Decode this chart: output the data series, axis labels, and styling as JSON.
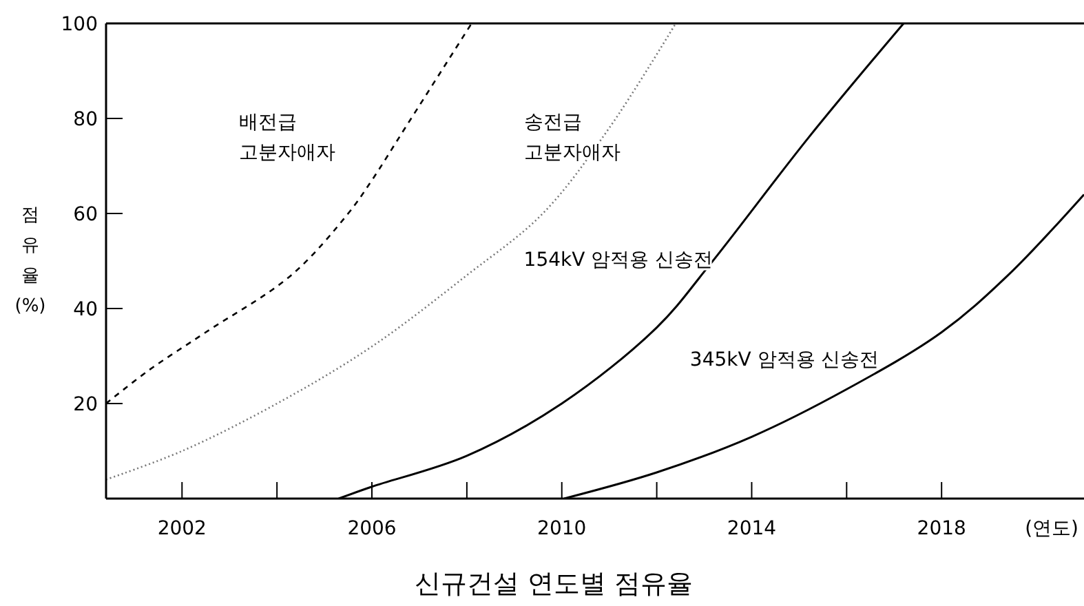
{
  "chart_data": {
    "type": "line",
    "title": "신규건설 연도별 점유율",
    "xlabel": "(연도)",
    "ylabel": "점유율 (%)",
    "xlim": [
      2000.4,
      2021
    ],
    "ylim": [
      0,
      100
    ],
    "xticks": [
      {
        "value": 2002,
        "label": "2002"
      },
      {
        "value": 2004,
        "label": null
      },
      {
        "value": 2006,
        "label": "2006"
      },
      {
        "value": 2008,
        "label": null
      },
      {
        "value": 2010,
        "label": "2010"
      },
      {
        "value": 2012,
        "label": null
      },
      {
        "value": 2014,
        "label": "2014"
      },
      {
        "value": 2016,
        "label": null
      },
      {
        "value": 2018,
        "label": "2018"
      }
    ],
    "yticks": [
      20,
      40,
      60,
      80,
      100
    ],
    "grid": false,
    "marker": "none",
    "series": [
      {
        "name": "배전급 고분자애자",
        "color": "#000000",
        "line_style": "dashed",
        "x": [
          2000.4,
          2001.3,
          2002.5,
          2004.3,
          2005.5,
          2006,
          2006.7,
          2008.1
        ],
        "values": [
          20,
          27,
          35,
          47,
          60,
          67,
          78,
          100
        ]
      },
      {
        "name": "송전급 고분자애자",
        "color": "#777777",
        "line_style": "dotted",
        "x": [
          2000.4,
          2002,
          2004,
          2006,
          2008,
          2009.6,
          2011,
          2012.4
        ],
        "values": [
          4,
          10,
          20,
          32,
          47,
          60,
          78,
          100
        ]
      },
      {
        "name": "154kV 암적용 신송전",
        "color": "#000000",
        "line_style": "solid",
        "x": [
          2005.3,
          2006,
          2008,
          2010,
          2012,
          2013.1,
          2015.2,
          2017.2
        ],
        "values": [
          0,
          2.5,
          9,
          20,
          36,
          49,
          76,
          100
        ]
      },
      {
        "name": "345kV 암적용 신송전",
        "color": "#000000",
        "line_style": "solid",
        "x": [
          2010.05,
          2012,
          2014,
          2016,
          2018,
          2019.4,
          2021
        ],
        "values": [
          0,
          5.5,
          13,
          23,
          35,
          47,
          64
        ]
      }
    ]
  }
}
